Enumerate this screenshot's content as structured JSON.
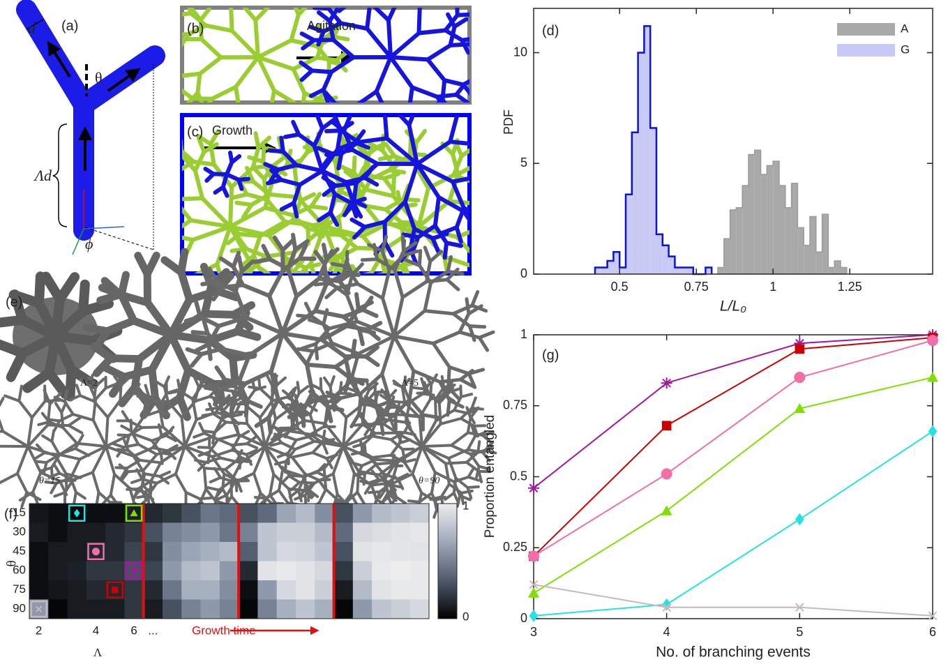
{
  "panels": {
    "a": {
      "label": "(a)",
      "d": "d",
      "theta": "θ",
      "lambda_d": "Λd",
      "phi": "ϕ"
    },
    "b": {
      "label": "(b)",
      "text": "Agitation"
    },
    "c": {
      "label": "(c)",
      "text": "Growth"
    },
    "e": {
      "label": "(e)",
      "captions": [
        "Λ=2",
        "Λ=5",
        "θ=15",
        "θ=90"
      ]
    }
  },
  "chart_data": [
    {
      "type": "histogram",
      "panel_label": "(d)",
      "x_label": "L/L₀",
      "y_label": "PDF",
      "xlim": [
        0.22,
        1.52
      ],
      "ylim": [
        0,
        12
      ],
      "xticks": [
        0.5,
        0.75,
        1,
        1.25
      ],
      "yticks": [
        0,
        5,
        10
      ],
      "legend": "upper right",
      "series": [
        {
          "name": "A",
          "color": "#a9a9a9",
          "edge_color": "#9a9a9a",
          "bins": [
            0.82,
            0.84,
            0.86,
            0.88,
            0.9,
            0.92,
            0.94,
            0.96,
            0.98,
            1.0,
            1.02,
            1.04,
            1.06,
            1.08,
            1.1,
            1.12,
            1.14,
            1.16,
            1.18,
            1.2,
            1.22,
            1.24
          ],
          "values": [
            0.3,
            1.6,
            2.9,
            3.0,
            4.0,
            5.4,
            5.6,
            4.5,
            4.9,
            5.1,
            4.0,
            3.0,
            4.1,
            2.1,
            1.3,
            2.6,
            1.0,
            2.7,
            0.3,
            0.6,
            0.3
          ]
        },
        {
          "name": "G",
          "color": "#c9c9f5",
          "edge_color": "#0a14d2",
          "bins": [
            0.42,
            0.44,
            0.46,
            0.48,
            0.5,
            0.52,
            0.54,
            0.56,
            0.58,
            0.6,
            0.62,
            0.64,
            0.66,
            0.68,
            0.7,
            0.72,
            0.74,
            0.76,
            0.78,
            0.8
          ],
          "values": [
            0.3,
            0.3,
            0.6,
            1.0,
            0.3,
            3.6,
            6.4,
            10.0,
            11.2,
            6.6,
            1.8,
            1.3,
            0.8,
            0.3,
            0.3,
            0.3,
            0,
            0,
            0.3
          ]
        }
      ]
    },
    {
      "type": "line",
      "panel_label": "(g)",
      "x_label": "No. of branching events",
      "y_label": "Proportion entangled",
      "x": [
        3,
        4,
        5,
        6
      ],
      "xlim": [
        3,
        6
      ],
      "ylim": [
        0,
        1
      ],
      "xticks": [
        3,
        4,
        5,
        6
      ],
      "yticks": [
        0,
        0.25,
        0.5,
        0.75,
        1
      ],
      "series": [
        {
          "color": "#a0189f",
          "marker": "star",
          "values": [
            0.46,
            0.83,
            0.97,
            1.0
          ]
        },
        {
          "color": "#cc0000",
          "marker": "square",
          "values": [
            0.22,
            0.68,
            0.95,
            0.99
          ]
        },
        {
          "color": "#f06fa8",
          "marker": "circle",
          "values": [
            0.22,
            0.51,
            0.85,
            0.98
          ]
        },
        {
          "color": "#7ee000",
          "marker": "triangle",
          "values": [
            0.09,
            0.38,
            0.74,
            0.85
          ]
        },
        {
          "color": "#22e3e3",
          "marker": "diamond",
          "values": [
            0.01,
            0.05,
            0.35,
            0.66
          ]
        },
        {
          "color": "#c8b8bc",
          "marker": "x",
          "values": [
            0.12,
            0.04,
            0.04,
            0.01
          ]
        }
      ]
    },
    {
      "type": "heatmap",
      "panel_label": "(f)",
      "x_label": "Λ",
      "y_label": "θ",
      "annotation": "Growth time",
      "rows": [
        15,
        30,
        45,
        60,
        75,
        90
      ],
      "categories": [
        "2",
        null,
        null,
        "4",
        null,
        "6",
        "...",
        null,
        null,
        null,
        null,
        null,
        null,
        null,
        null,
        null,
        null,
        null,
        null,
        null,
        null
      ],
      "zlim": [
        0,
        1
      ],
      "zticks": [
        0,
        1
      ],
      "values": [
        [
          0.08,
          0.05,
          0.02,
          0.05,
          0.05,
          0.12,
          0.15,
          0.2,
          0.3,
          0.45,
          0.4,
          0.3,
          0.4,
          0.65,
          0.75,
          0.55,
          0.3,
          0.6,
          0.75,
          0.8,
          0.85
        ],
        [
          0.1,
          0.05,
          0.1,
          0.1,
          0.15,
          0.2,
          0.3,
          0.5,
          0.55,
          0.6,
          0.45,
          0.5,
          0.8,
          0.85,
          0.85,
          0.75,
          0.4,
          0.9,
          0.92,
          0.95,
          0.97
        ],
        [
          0.05,
          0.1,
          0.1,
          0.15,
          0.15,
          0.25,
          0.2,
          0.55,
          0.65,
          0.7,
          0.75,
          0.35,
          0.8,
          0.9,
          0.88,
          0.8,
          0.3,
          0.95,
          0.97,
          0.96,
          0.95
        ],
        [
          0.05,
          0.1,
          0.12,
          0.2,
          0.2,
          0.3,
          0.25,
          0.6,
          0.75,
          0.8,
          0.6,
          0.15,
          0.95,
          0.98,
          0.95,
          0.9,
          0.2,
          0.85,
          0.98,
          1.0,
          0.98
        ],
        [
          0.05,
          0.08,
          0.1,
          0.15,
          0.15,
          0.2,
          0.15,
          0.45,
          0.7,
          0.7,
          0.55,
          0.05,
          0.6,
          0.9,
          0.95,
          0.85,
          0.1,
          0.75,
          0.95,
          0.98,
          0.98
        ],
        [
          0.6,
          0.02,
          0.1,
          0.1,
          0.1,
          0.2,
          0.1,
          0.3,
          0.5,
          0.6,
          0.5,
          0.02,
          0.5,
          0.7,
          0.8,
          0.7,
          0.02,
          0.6,
          0.8,
          0.85,
          0.9
        ]
      ]
    }
  ]
}
